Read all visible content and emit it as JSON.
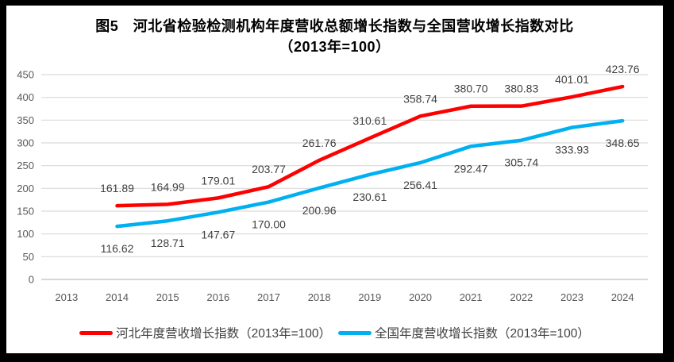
{
  "title": {
    "line1": "图5　河北省检验检测机构年度营收总额增长指数与全国营收增长指数对比",
    "line2": "（2013年=100）"
  },
  "chart_data": {
    "type": "line",
    "categories": [
      "2013",
      "2014",
      "2015",
      "2016",
      "2017",
      "2018",
      "2019",
      "2020",
      "2021",
      "2022",
      "2023",
      "2024"
    ],
    "series": [
      {
        "name": "河北年度营收增长指数（2013年=100）",
        "color": "#FF0000",
        "values": [
          null,
          161.89,
          164.99,
          179.01,
          203.77,
          261.76,
          310.61,
          358.74,
          380.7,
          380.83,
          401.01,
          423.76
        ],
        "labels": [
          null,
          "161.89",
          "164.99",
          "179.01",
          "203.77",
          "261.76",
          "310.61",
          "358.74",
          "380.70",
          "380.83",
          "401.01",
          "423.76"
        ],
        "label_position": "above"
      },
      {
        "name": "全国年度营收增长指数（2013年=100）",
        "color": "#00B0F0",
        "values": [
          null,
          116.62,
          128.71,
          147.67,
          170.0,
          200.96,
          230.61,
          256.41,
          292.47,
          305.74,
          333.93,
          348.65
        ],
        "labels": [
          null,
          "116.62",
          "128.71",
          "147.67",
          "170.00",
          "200.96",
          "230.61",
          "256.41",
          "292.47",
          "305.74",
          "333.93",
          "348.65"
        ],
        "label_position": "below"
      }
    ],
    "ylim": [
      0,
      450
    ],
    "yticks": [
      0,
      50,
      100,
      150,
      200,
      250,
      300,
      350,
      400,
      450
    ],
    "grid": true,
    "legend_position": "bottom",
    "colors": {
      "gridline": "#D9D9D9",
      "axis_line": "#BFBFBF",
      "tick_label": "#595959",
      "data_label": "#404040"
    }
  }
}
